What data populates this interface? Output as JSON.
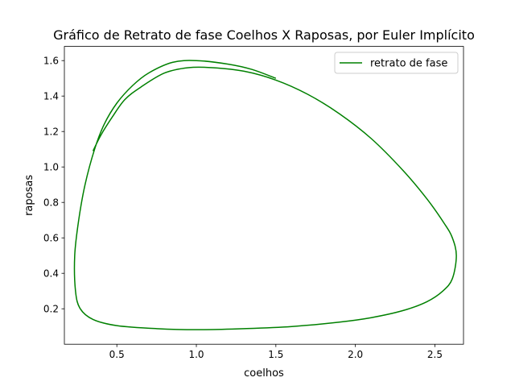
{
  "chart_data": {
    "type": "line",
    "title": "Gráfico de Retrato de fase Coelhos X Raposas, por Euler Implícito",
    "xlabel": "coelhos",
    "ylabel": "raposas",
    "xlim": [
      0.17,
      2.68
    ],
    "ylim": [
      0.0,
      1.68
    ],
    "xticks": [
      "0.5",
      "1.0",
      "1.5",
      "2.0",
      "2.5"
    ],
    "yticks": [
      "0.2",
      "0.4",
      "0.6",
      "0.8",
      "1.0",
      "1.2",
      "1.4",
      "1.6"
    ],
    "grid": false,
    "legend_position": "top-right",
    "series": [
      {
        "name": "retrato de fase",
        "color": "#008000",
        "points": [
          [
            1.5,
            1.5
          ],
          [
            1.35,
            1.55
          ],
          [
            1.2,
            1.58
          ],
          [
            1.0,
            1.6
          ],
          [
            0.85,
            1.59
          ],
          [
            0.7,
            1.53
          ],
          [
            0.6,
            1.46
          ],
          [
            0.5,
            1.36
          ],
          [
            0.42,
            1.24
          ],
          [
            0.36,
            1.1
          ],
          [
            0.3,
            0.9
          ],
          [
            0.26,
            0.7
          ],
          [
            0.235,
            0.5
          ],
          [
            0.24,
            0.3
          ],
          [
            0.27,
            0.2
          ],
          [
            0.35,
            0.14
          ],
          [
            0.5,
            0.105
          ],
          [
            0.75,
            0.088
          ],
          [
            1.0,
            0.082
          ],
          [
            1.3,
            0.088
          ],
          [
            1.6,
            0.1
          ],
          [
            1.9,
            0.125
          ],
          [
            2.1,
            0.15
          ],
          [
            2.3,
            0.19
          ],
          [
            2.45,
            0.24
          ],
          [
            2.55,
            0.3
          ],
          [
            2.61,
            0.37
          ],
          [
            2.635,
            0.5
          ],
          [
            2.61,
            0.6
          ],
          [
            2.56,
            0.68
          ],
          [
            2.45,
            0.82
          ],
          [
            2.3,
            0.98
          ],
          [
            2.1,
            1.16
          ],
          [
            1.9,
            1.3
          ],
          [
            1.7,
            1.41
          ],
          [
            1.5,
            1.49
          ],
          [
            1.3,
            1.54
          ],
          [
            1.1,
            1.56
          ],
          [
            0.95,
            1.56
          ],
          [
            0.8,
            1.53
          ],
          [
            0.65,
            1.45
          ],
          [
            0.55,
            1.38
          ],
          [
            0.47,
            1.28
          ],
          [
            0.4,
            1.18
          ],
          [
            0.35,
            1.09
          ]
        ]
      }
    ]
  }
}
